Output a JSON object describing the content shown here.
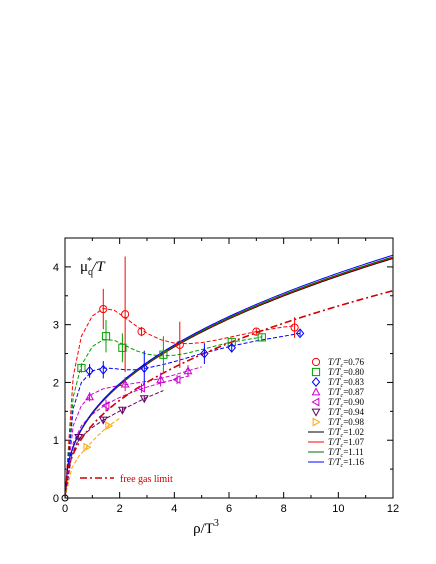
{
  "chart_data": {
    "type": "scatter",
    "title": "",
    "xlabel": "ρ/T",
    "xlabel_sup": "3",
    "ylabel": "μ",
    "ylabel_sub": "q",
    "ylabel_sup": "*",
    "ylabel_tail": "/T",
    "xlim": [
      0,
      12
    ],
    "ylim": [
      0,
      4.5
    ],
    "xticks": [
      0,
      2,
      4,
      6,
      8,
      10,
      12
    ],
    "yticks": [
      0,
      1,
      2,
      3,
      4
    ],
    "xtick_labels": [
      "0",
      "2",
      "4",
      "6",
      "8",
      "10",
      "12"
    ],
    "ytick_labels": [
      "0",
      "1",
      "2",
      "3",
      "4"
    ],
    "grid": false,
    "legend_position": "bottom-right",
    "series": [
      {
        "name": "T/Tc=0.76",
        "label_main": "T/T",
        "label_sub": "c",
        "label_val": "=0.76",
        "kind": "points",
        "marker": "circle",
        "color": "#ff0000",
        "x": [
          1.4,
          2.2,
          2.8,
          4.2,
          7.0,
          8.4
        ],
        "y": [
          3.27,
          3.18,
          2.88,
          2.65,
          2.88,
          2.95
        ],
        "yerr": [
          0.35,
          1.0,
          0.08,
          0.4,
          0.05,
          0.18
        ],
        "fit_x": [
          0,
          0.3,
          0.6,
          1.0,
          1.4,
          1.8,
          2.2,
          2.6,
          3.0,
          3.5,
          4.0,
          4.5,
          5.0,
          5.5,
          6.0,
          6.5,
          7.0,
          7.5,
          8.0,
          8.4
        ],
        "fit_y": [
          0,
          2.1,
          2.8,
          3.15,
          3.28,
          3.25,
          3.12,
          2.98,
          2.85,
          2.74,
          2.68,
          2.67,
          2.69,
          2.73,
          2.78,
          2.83,
          2.88,
          2.92,
          2.96,
          2.98
        ]
      },
      {
        "name": "T/Tc=0.80",
        "label_main": "T/T",
        "label_sub": "c",
        "label_val": "=0.80",
        "kind": "points",
        "marker": "square",
        "color": "#00a000",
        "x": [
          0.6,
          1.5,
          2.1,
          3.6,
          6.1,
          7.2
        ],
        "y": [
          2.25,
          2.8,
          2.6,
          2.48,
          2.7,
          2.78
        ],
        "yerr": [
          0.08,
          0.28,
          0.25,
          0.32,
          0.05,
          0.05
        ],
        "fit_x": [
          0,
          0.3,
          0.6,
          1.0,
          1.4,
          1.8,
          2.2,
          2.6,
          3.0,
          3.5,
          4.0,
          4.5,
          5.0,
          5.5,
          6.0,
          6.5,
          7.0,
          7.2
        ],
        "fit_y": [
          0,
          1.75,
          2.3,
          2.62,
          2.74,
          2.73,
          2.64,
          2.55,
          2.49,
          2.46,
          2.47,
          2.51,
          2.57,
          2.63,
          2.69,
          2.73,
          2.77,
          2.79
        ]
      },
      {
        "name": "T/Tc=0.83",
        "label_main": "T/T",
        "label_sub": "c",
        "label_val": "=0.83",
        "kind": "points",
        "marker": "diamond",
        "color": "#0000ff",
        "x": [
          0.9,
          1.4,
          2.9,
          5.1,
          6.1,
          8.6
        ],
        "y": [
          2.2,
          2.22,
          2.25,
          2.5,
          2.6,
          2.85
        ],
        "yerr": [
          0.12,
          0.15,
          0.3,
          0.18,
          0.08,
          0.05
        ],
        "fit_x": [
          0,
          0.3,
          0.6,
          1.0,
          1.4,
          1.8,
          2.2,
          2.6,
          3.0,
          3.5,
          4.0,
          4.5,
          5.0,
          5.5,
          6.0,
          6.5,
          7.0,
          7.5,
          8.0,
          8.6
        ],
        "fit_y": [
          0,
          1.55,
          2.0,
          2.2,
          2.25,
          2.24,
          2.22,
          2.22,
          2.25,
          2.3,
          2.36,
          2.43,
          2.5,
          2.56,
          2.62,
          2.67,
          2.72,
          2.76,
          2.8,
          2.85
        ]
      },
      {
        "name": "T/Tc=0.87",
        "label_main": "T/T",
        "label_sub": "c",
        "label_val": "=0.87",
        "kind": "points",
        "marker": "triangle-up",
        "color": "#cc00cc",
        "x": [
          0.9,
          2.2,
          3.5,
          4.5
        ],
        "y": [
          1.75,
          1.97,
          2.05,
          2.2
        ],
        "yerr": [
          0.08,
          0.12,
          0.12,
          0.1
        ],
        "fit_x": [
          0,
          0.3,
          0.6,
          1.0,
          1.4,
          1.8,
          2.2,
          2.6,
          3.0,
          3.5,
          4.0,
          4.5,
          5.0
        ],
        "fit_y": [
          0,
          1.25,
          1.6,
          1.8,
          1.89,
          1.93,
          1.96,
          1.99,
          2.02,
          2.07,
          2.13,
          2.2,
          2.27
        ]
      },
      {
        "name": "T/Tc=0.90",
        "label_main": "T/T",
        "label_sub": "c",
        "label_val": "=0.90",
        "kind": "points",
        "marker": "triangle-left",
        "color": "#cc00cc",
        "x": [
          1.5,
          2.8,
          4.1
        ],
        "y": [
          1.6,
          1.9,
          2.05
        ],
        "yerr": [
          0.1,
          0.08,
          0.08
        ],
        "fit_x": [
          0,
          0.3,
          0.6,
          1.0,
          1.5,
          2.0,
          2.5,
          3.0,
          3.5,
          4.1,
          4.6
        ],
        "fit_y": [
          0,
          0.95,
          1.25,
          1.45,
          1.62,
          1.74,
          1.84,
          1.92,
          1.99,
          2.06,
          2.12
        ]
      },
      {
        "name": "T/Tc=0.94",
        "label_main": "T/T",
        "label_sub": "c",
        "label_val": "=0.94",
        "kind": "points",
        "marker": "triangle-down",
        "color": "#660066",
        "x": [
          0.5,
          1.4,
          2.1,
          2.9
        ],
        "y": [
          1.05,
          1.35,
          1.52,
          1.72
        ],
        "yerr": [
          0.05,
          0.05,
          0.05,
          0.05
        ],
        "fit_x": [
          0,
          0.25,
          0.5,
          1.0,
          1.4,
          2.1,
          2.9,
          3.6
        ],
        "fit_y": [
          0,
          0.75,
          1.02,
          1.22,
          1.35,
          1.53,
          1.72,
          1.86
        ]
      },
      {
        "name": "T/Tc=0.98",
        "label_main": "T/T",
        "label_sub": "c",
        "label_val": "=0.98",
        "kind": "points",
        "marker": "triangle-right",
        "color": "#ffa500",
        "x": [
          0.8,
          1.6
        ],
        "y": [
          0.88,
          1.25
        ],
        "yerr": [
          0.04,
          0.04
        ],
        "fit_x": [
          0,
          0.25,
          0.5,
          0.8,
          1.2,
          1.6,
          2.0
        ],
        "fit_y": [
          0,
          0.52,
          0.72,
          0.88,
          1.08,
          1.25,
          1.38
        ]
      },
      {
        "name": "T/Tc=1.02",
        "label_main": "T/T",
        "label_sub": "c",
        "label_val": "=1.02",
        "kind": "line",
        "color": "#000000",
        "a": 1.46
      },
      {
        "name": "T/Tc=1.07",
        "label_main": "T/T",
        "label_sub": "c",
        "label_val": "=1.07",
        "kind": "line",
        "color": "#ff0000",
        "a": 1.465
      },
      {
        "name": "T/Tc=1.11",
        "label_main": "T/T",
        "label_sub": "c",
        "label_val": "=1.11",
        "kind": "line",
        "color": "#007000",
        "a": 1.47
      },
      {
        "name": "T/Tc=1.16",
        "label_main": "T/T",
        "label_sub": "c",
        "label_val": "=1.16",
        "kind": "line",
        "color": "#0000ff",
        "a": 1.48
      }
    ],
    "free_gas": {
      "name": "free gas limit",
      "color": "#cc0000",
      "a": 1.33
    }
  }
}
